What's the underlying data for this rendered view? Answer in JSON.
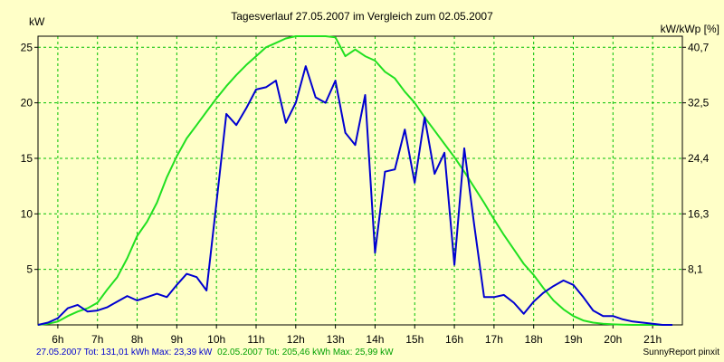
{
  "chart_data": {
    "type": "line",
    "title": "Tagesverlauf 27.05.2007 im Vergleich zum 02.05.2007",
    "ylabel_left": "kW",
    "ylabel_right": "kW/kWp [%]",
    "x_ticks": [
      "6h",
      "7h",
      "8h",
      "9h",
      "10h",
      "11h",
      "12h",
      "13h",
      "14h",
      "15h",
      "16h",
      "17h",
      "18h",
      "19h",
      "20h",
      "21h"
    ],
    "y_ticks_left": [
      "5",
      "10",
      "15",
      "20",
      "25"
    ],
    "y_ticks_right": [
      "8,1",
      "16,3",
      "24,4",
      "32,5",
      "40,7"
    ],
    "xlim": [
      5.5,
      21.75
    ],
    "ylim": [
      0,
      26
    ],
    "grid": true,
    "series": [
      {
        "name": "27.05.2007",
        "color": "#0000d0",
        "x": [
          5.5,
          5.75,
          6.0,
          6.25,
          6.5,
          6.75,
          7.0,
          7.25,
          7.5,
          7.75,
          8.0,
          8.25,
          8.5,
          8.75,
          9.0,
          9.25,
          9.5,
          9.75,
          10.0,
          10.25,
          10.5,
          10.75,
          11.0,
          11.25,
          11.5,
          11.75,
          12.0,
          12.25,
          12.5,
          12.75,
          13.0,
          13.25,
          13.5,
          13.75,
          14.0,
          14.25,
          14.5,
          14.75,
          15.0,
          15.25,
          15.5,
          15.75,
          16.0,
          16.25,
          16.5,
          16.75,
          17.0,
          17.25,
          17.5,
          17.75,
          18.0,
          18.25,
          18.5,
          18.75,
          19.0,
          19.25,
          19.5,
          19.75,
          20.0,
          20.25,
          20.5,
          20.75,
          21.0,
          21.25,
          21.5
        ],
        "y": [
          0.0,
          0.2,
          0.6,
          1.5,
          1.8,
          1.2,
          1.3,
          1.6,
          2.1,
          2.6,
          2.2,
          2.5,
          2.8,
          2.5,
          3.6,
          4.6,
          4.3,
          3.1,
          11.0,
          19.0,
          18.0,
          19.5,
          21.2,
          21.4,
          22.0,
          18.2,
          20.0,
          23.3,
          20.5,
          20.0,
          22.0,
          17.3,
          16.2,
          20.7,
          6.5,
          13.8,
          14.0,
          17.6,
          12.8,
          18.7,
          13.6,
          15.5,
          5.4,
          15.9,
          9.0,
          2.5,
          2.5,
          2.7,
          2.0,
          1.0,
          2.1,
          2.9,
          3.5,
          4.0,
          3.6,
          2.5,
          1.3,
          0.8,
          0.8,
          0.5,
          0.3,
          0.2,
          0.1,
          0.0,
          0.0
        ]
      },
      {
        "name": "02.05.2007",
        "color": "#20e020",
        "x": [
          5.5,
          5.75,
          6.0,
          6.25,
          6.5,
          6.75,
          7.0,
          7.25,
          7.5,
          7.75,
          8.0,
          8.25,
          8.5,
          8.75,
          9.0,
          9.25,
          9.5,
          9.75,
          10.0,
          10.25,
          10.5,
          10.75,
          11.0,
          11.25,
          11.5,
          11.75,
          12.0,
          12.25,
          12.5,
          12.75,
          13.0,
          13.25,
          13.5,
          13.75,
          14.0,
          14.25,
          14.5,
          14.75,
          15.0,
          15.25,
          15.5,
          15.75,
          16.0,
          16.25,
          16.5,
          16.75,
          17.0,
          17.25,
          17.5,
          17.75,
          18.0,
          18.25,
          18.5,
          18.75,
          19.0,
          19.25,
          19.5,
          19.75,
          20.0,
          20.25,
          20.5,
          20.75,
          21.0,
          21.25,
          21.5
        ],
        "y": [
          0.0,
          0.1,
          0.3,
          0.8,
          1.2,
          1.5,
          2.0,
          3.2,
          4.3,
          6.0,
          8.0,
          9.3,
          11.0,
          13.3,
          15.2,
          16.8,
          18.0,
          19.2,
          20.4,
          21.5,
          22.5,
          23.4,
          24.2,
          25.0,
          25.4,
          25.8,
          26.4,
          26.7,
          26.8,
          26.5,
          25.9,
          24.2,
          24.8,
          24.2,
          23.8,
          22.8,
          22.2,
          21.0,
          20.0,
          18.7,
          17.5,
          16.3,
          15.1,
          13.8,
          12.4,
          11.0,
          9.5,
          8.1,
          6.8,
          5.5,
          4.5,
          3.3,
          2.2,
          1.4,
          0.8,
          0.4,
          0.2,
          0.1,
          0.05,
          0.02,
          0.0,
          0.0,
          0.0,
          0.0,
          0.0
        ]
      }
    ]
  },
  "footer": {
    "summary_blue": "27.05.2007 Tot: 131,01 kWh Max: 23,39 kW",
    "summary_green": "02.05.2007 Tot: 205,46 kWh Max: 25,99 kW",
    "credit": "SunnyReport pinxit"
  }
}
